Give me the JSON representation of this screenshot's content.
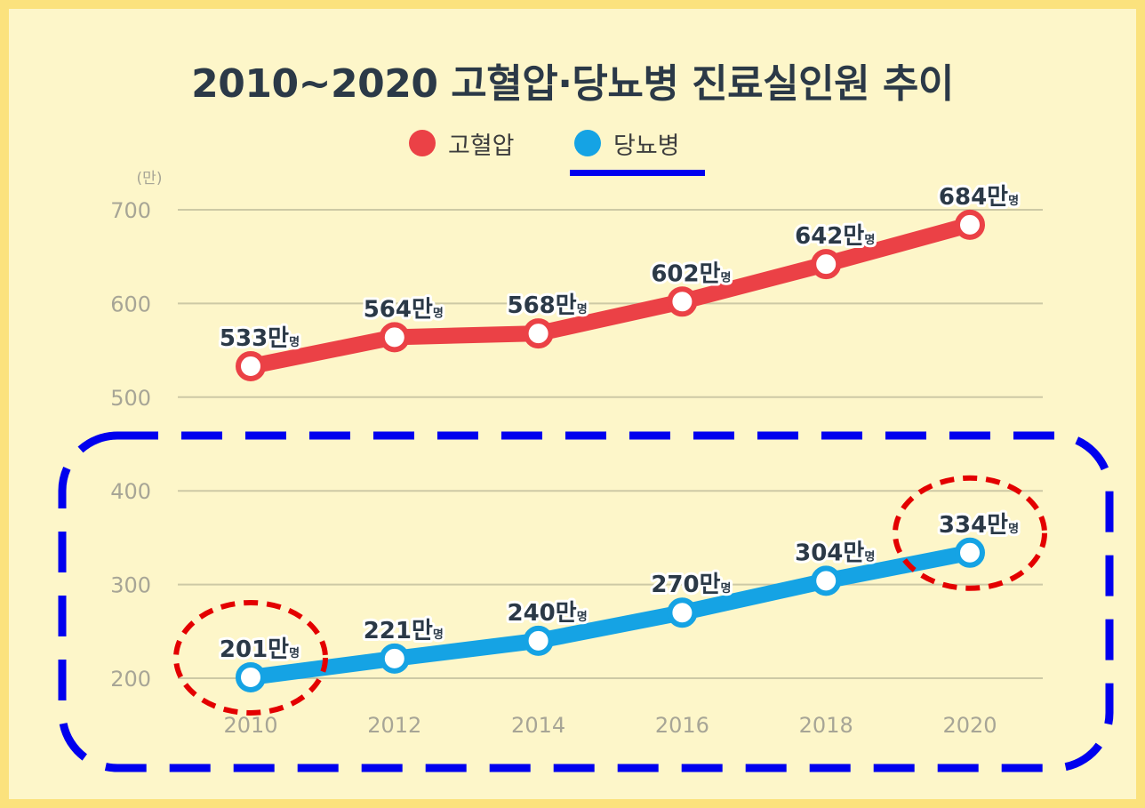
{
  "chart_data": {
    "type": "line",
    "title": "2010~2020 고혈압·당뇨병 진료실인원 추이",
    "y_unit_label": "(만)",
    "x": [
      "2010",
      "2012",
      "2014",
      "2016",
      "2018",
      "2020"
    ],
    "yticks": [
      200,
      300,
      400,
      500,
      600,
      700
    ],
    "ylim": [
      200,
      700
    ],
    "grid": true,
    "legend_position": "top",
    "series": [
      {
        "name": "고혈압",
        "color": "#eb4146",
        "values": [
          533,
          564,
          568,
          602,
          642,
          684
        ],
        "labels": [
          "533만",
          "564만",
          "568만",
          "602만",
          "642만",
          "684만"
        ],
        "label_suffix": "명"
      },
      {
        "name": "당뇨병",
        "color": "#15a3e4",
        "values": [
          201,
          221,
          240,
          270,
          304,
          334
        ],
        "labels": [
          "201만",
          "221만",
          "240만",
          "270만",
          "304만",
          "334만"
        ],
        "label_suffix": "명"
      }
    ]
  },
  "annotations": {
    "highlight_box_color": "#0000ee",
    "circle_color": "#e30000",
    "circled_points": [
      "2010",
      "2020"
    ]
  }
}
